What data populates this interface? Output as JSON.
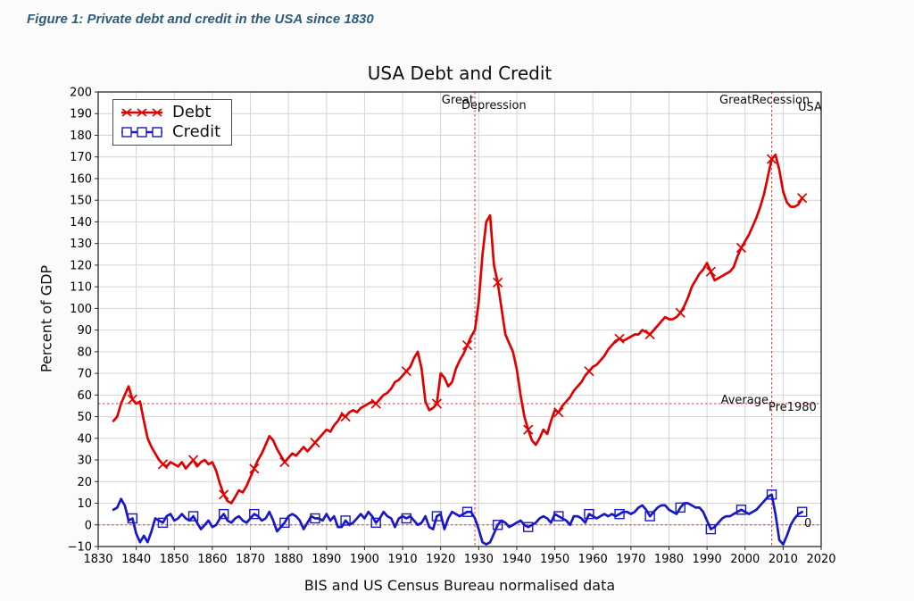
{
  "figure_caption": "Figure 1: Private debt and credit in the USA since 1830",
  "chart_data": {
    "type": "line",
    "title": "USA Debt and Credit",
    "xlabel": "BIS and US Census Bureau normalised data",
    "ylabel": "Percent of GDP",
    "xlim": [
      1830,
      2020
    ],
    "ylim": [
      -10,
      200
    ],
    "x_ticks": [
      1830,
      1840,
      1850,
      1860,
      1870,
      1880,
      1890,
      1900,
      1910,
      1920,
      1930,
      1940,
      1950,
      1960,
      1970,
      1980,
      1990,
      2000,
      2010,
      2020
    ],
    "y_ticks": [
      -10,
      0,
      10,
      20,
      30,
      40,
      50,
      60,
      70,
      80,
      90,
      100,
      110,
      120,
      130,
      140,
      150,
      160,
      170,
      180,
      190,
      200
    ],
    "grid": true,
    "legend_position": "upper-left",
    "x_start": 1834,
    "x_step": 1,
    "series": [
      {
        "name": "Debt",
        "color": "#e00000",
        "marker": "x",
        "markevery": 8,
        "marker_offset": 5,
        "values": [
          48,
          50,
          56,
          60,
          64,
          58,
          56,
          57,
          48,
          40,
          36,
          33,
          30,
          28,
          27,
          29,
          28,
          27,
          29,
          26,
          28,
          30,
          27,
          29,
          30,
          28,
          29,
          25,
          19,
          14,
          11,
          10,
          13,
          16,
          15,
          18,
          22,
          26,
          30,
          33,
          37,
          41,
          39,
          35,
          32,
          29,
          31,
          33,
          32,
          34,
          36,
          34,
          36,
          38,
          40,
          42,
          44,
          43,
          46,
          48,
          51,
          50,
          52,
          53,
          52,
          54,
          55,
          56,
          57,
          56,
          58,
          60,
          61,
          63,
          66,
          67,
          69,
          71,
          73,
          77,
          80,
          72,
          57,
          53,
          54,
          56,
          70,
          68,
          64,
          66,
          72,
          76,
          79,
          83,
          87,
          90,
          103,
          125,
          140,
          143,
          120,
          112,
          100,
          88,
          84,
          80,
          72,
          60,
          50,
          44,
          39,
          37,
          40,
          44,
          42,
          48,
          53,
          52,
          55,
          57,
          59,
          62,
          64,
          66,
          69,
          71,
          73,
          74,
          76,
          78,
          81,
          83,
          85,
          86,
          85,
          86,
          87,
          88,
          88,
          90,
          89,
          88,
          90,
          92,
          94,
          96,
          95,
          95,
          96,
          98,
          101,
          105,
          110,
          113,
          116,
          118,
          121,
          117,
          113,
          114,
          115,
          116,
          117,
          119,
          124,
          128,
          131,
          134,
          138,
          142,
          147,
          153,
          161,
          169,
          171,
          164,
          154,
          149,
          147,
          147,
          148,
          151
        ]
      },
      {
        "name": "Credit",
        "color": "#1818c8",
        "marker": "square",
        "markevery": 8,
        "marker_offset": 5,
        "values": [
          7,
          8,
          12,
          9,
          2,
          3,
          -4,
          -8,
          -5,
          -8,
          -3,
          3,
          2,
          1,
          4,
          5,
          2,
          3,
          5,
          3,
          2,
          4,
          1,
          -2,
          0,
          2,
          -1,
          0,
          3,
          5,
          2,
          1,
          3,
          4,
          2,
          1,
          3,
          5,
          4,
          2,
          3,
          6,
          2,
          -3,
          -1,
          1,
          4,
          5,
          4,
          2,
          -2,
          1,
          4,
          3,
          3,
          2,
          5,
          2,
          4,
          -1,
          -1,
          2,
          0,
          1,
          3,
          5,
          3,
          6,
          4,
          1,
          3,
          6,
          4,
          3,
          -1,
          3,
          4,
          3,
          4,
          2,
          0,
          1,
          4,
          -1,
          -2,
          4,
          5,
          -2,
          3,
          6,
          5,
          4,
          5,
          6,
          6,
          3,
          -2,
          -8,
          -9,
          -8,
          -4,
          0,
          2,
          1,
          -1,
          0,
          1,
          2,
          0,
          -1,
          0,
          1,
          3,
          4,
          3,
          1,
          5,
          4,
          3,
          2,
          0,
          4,
          4,
          3,
          1,
          5,
          4,
          3,
          4,
          5,
          4,
          5,
          4,
          5,
          6,
          6,
          5,
          6,
          8,
          9,
          7,
          4,
          6,
          8,
          9,
          9,
          7,
          6,
          5,
          8,
          10,
          10,
          9,
          8,
          8,
          6,
          2,
          -2,
          -1,
          1,
          3,
          4,
          4,
          5,
          6,
          7,
          6,
          5,
          6,
          7,
          9,
          11,
          13,
          14,
          5,
          -7,
          -9,
          -5,
          0,
          3,
          5,
          6
        ]
      }
    ],
    "reference_lines": {
      "color": "#e03030",
      "vertical_years": [
        1929,
        2007
      ],
      "horizontal_values": [
        56,
        0
      ]
    },
    "annotations": {
      "great": "Great",
      "depression": "Depression",
      "great_recession": "GreatRecession",
      "usa": "USA",
      "average": "Average",
      "pre1980": "Pre1980",
      "zero": "0"
    }
  }
}
